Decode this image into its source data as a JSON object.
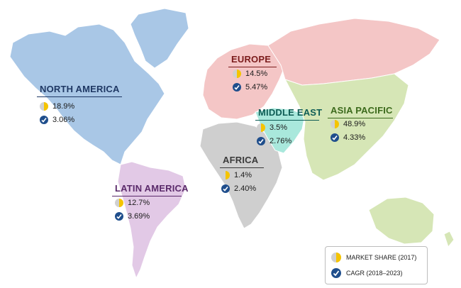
{
  "regions": {
    "north_america": {
      "name": "NORTH AMERICA",
      "market_share": "18.9%",
      "cagr": "3.06%",
      "color": "#a9c7e6",
      "label_color": "#1f3864"
    },
    "europe": {
      "name": "EUROPE",
      "market_share": "14.5%",
      "cagr": "5.47%",
      "color": "#f4c6c6",
      "label_color": "#7b1c1c"
    },
    "middle_east": {
      "name": "MIDDLE EAST",
      "market_share": "3.5%",
      "cagr": "2.76%",
      "color": "#a9e8dc",
      "label_color": "#0e5c55"
    },
    "asia_pacific": {
      "name": "ASIA PACIFIC",
      "market_share": "48.9%",
      "cagr": "4.33%",
      "color": "#d6e6b6",
      "label_color": "#3c6a1c"
    },
    "africa": {
      "name": "AFRICA",
      "market_share": "1.4%",
      "cagr": "2.40%",
      "color": "#cfcfcf",
      "label_color": "#3a3a3a"
    },
    "latin_america": {
      "name": "LATIN AMERICA",
      "market_share": "12.7%",
      "cagr": "3.69%",
      "color": "#e2c9e6",
      "label_color": "#5b2a6b"
    }
  },
  "legend": {
    "market_share_label": "MARKET SHARE (2017)",
    "cagr_label": "CAGR (2018–2023)"
  },
  "colors": {
    "pie_fill": "#f5c400",
    "pie_bg": "#d0d0d0",
    "check_fill": "#1f4e8c",
    "greenland": "#a9c7e6",
    "russia": "#f4c6c6",
    "australia": "#d6e6b6"
  }
}
